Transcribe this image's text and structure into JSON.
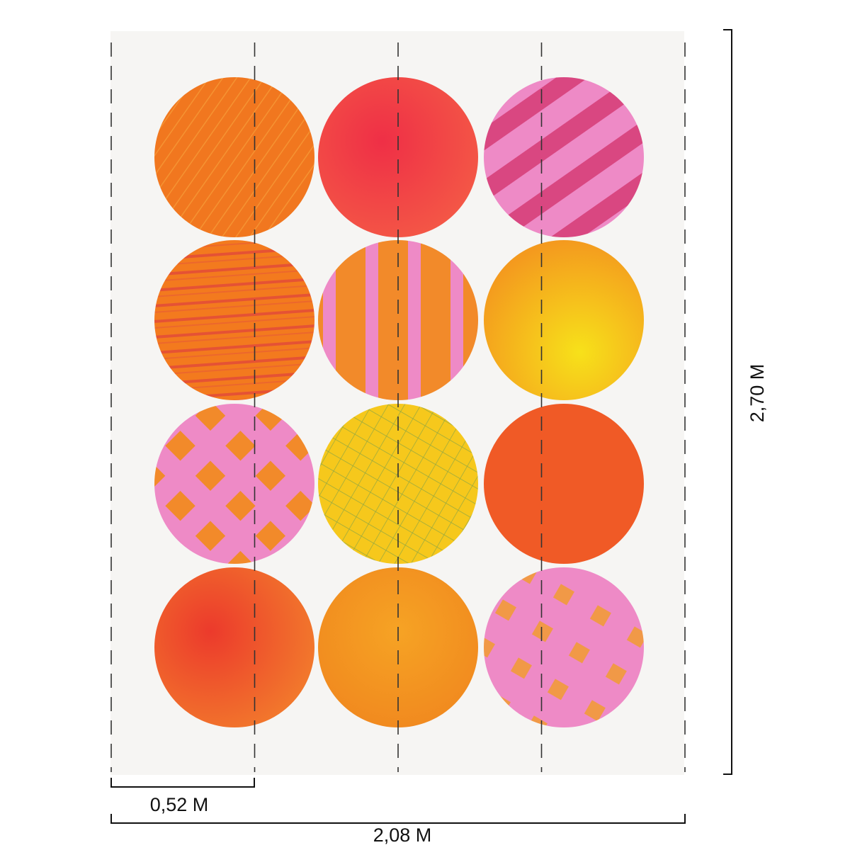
{
  "dimensions": {
    "panel_width": "0,52 M",
    "total_width": "2,08 M",
    "total_height": "2,70 M"
  },
  "panel_count": 4,
  "background_color": "#f6f5f3",
  "guide_color": "#333333",
  "circles": [
    {
      "name": "circle-r1-c1",
      "fill": "#f1771f",
      "accent": "#f38a2a",
      "pattern": "crosshatch-orange"
    },
    {
      "name": "circle-r1-c2",
      "fill": "#ef3a45",
      "accent": "#f4554b",
      "pattern": "painted-red"
    },
    {
      "name": "circle-r1-c3",
      "fill": "#ec83b8",
      "accent": "#d9366f",
      "pattern": "diagonal-stripes"
    },
    {
      "name": "circle-r2-c1",
      "fill": "#f37a1e",
      "accent": "#e24a3a",
      "pattern": "horizontal-strokes"
    },
    {
      "name": "circle-r2-c2",
      "fill": "#f28a2a",
      "accent": "#ee8ac6",
      "pattern": "pink-vertical-bars"
    },
    {
      "name": "circle-r2-c3",
      "fill": "#f8c21a",
      "accent": "#f7e11a",
      "pattern": "yellow-wash"
    },
    {
      "name": "circle-r3-c1",
      "fill": "#ee8ac6",
      "accent": "#f28a2a",
      "pattern": "orange-diamonds"
    },
    {
      "name": "circle-r3-c2",
      "fill": "#f6c81c",
      "accent": "#7aa04a",
      "pattern": "green-grid"
    },
    {
      "name": "circle-r3-c3",
      "fill": "#f05a26",
      "accent": "#f47a33",
      "pattern": "solid-orange"
    },
    {
      "name": "circle-r4-c1",
      "fill": "#ef4a2c",
      "accent": "#f47a33",
      "pattern": "red-orange-wash"
    },
    {
      "name": "circle-r4-c2",
      "fill": "#f39020",
      "accent": "#f6b12a",
      "pattern": "orange-wash"
    },
    {
      "name": "circle-r4-c3",
      "fill": "#ee8ac6",
      "accent": "#f29a3a",
      "pattern": "orange-dots"
    }
  ]
}
